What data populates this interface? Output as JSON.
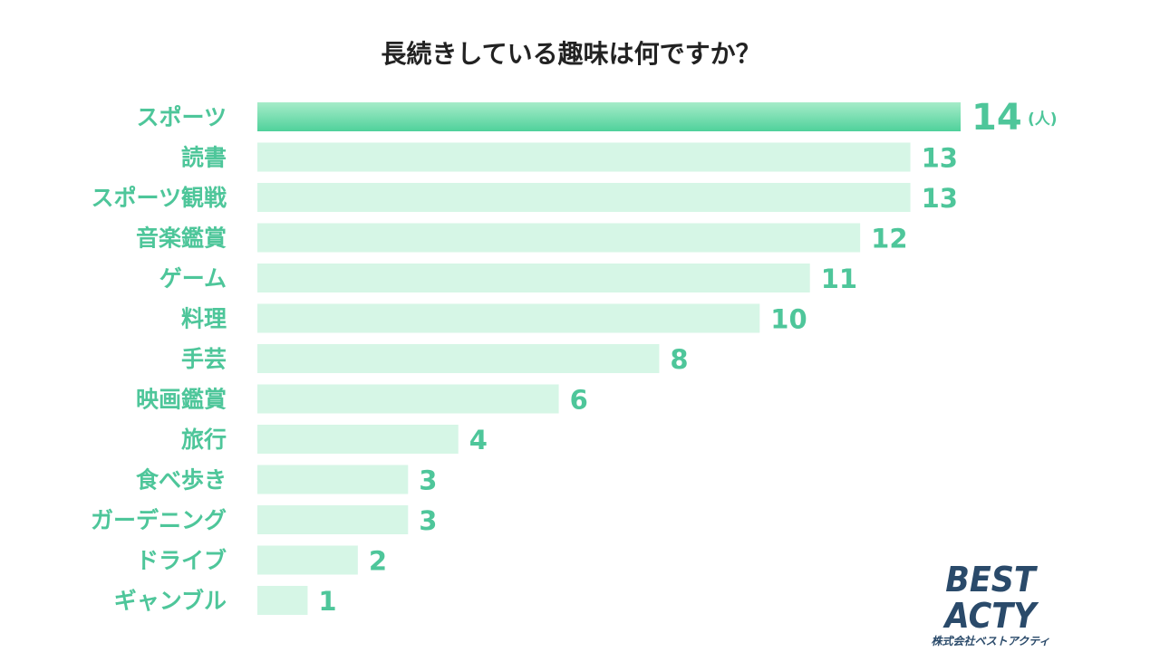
{
  "chart_data": {
    "type": "bar",
    "orientation": "horizontal",
    "title": "長続きしている趣味は何ですか？",
    "unit": "(人)",
    "categories": [
      "スポーツ",
      "読書",
      "スポーツ観戦",
      "音楽鑑賞",
      "ゲーム",
      "料理",
      "手芸",
      "映画鑑賞",
      "旅行",
      "食べ歩き",
      "ガーデニング",
      "ドライブ",
      "ギャンブル"
    ],
    "values": [
      14,
      13,
      13,
      12,
      11,
      10,
      8,
      6,
      4,
      3,
      3,
      2,
      1
    ],
    "xlim": [
      0,
      14
    ],
    "grid": false,
    "colors": {
      "highlight": "#5dd6a3",
      "highlight_light": "#9ee9c6",
      "bar": "#d6f6e6",
      "label": "#4ec69a"
    }
  },
  "logo": {
    "main": "BEST ACTY",
    "sub": "株式会社ベストアクティ"
  }
}
